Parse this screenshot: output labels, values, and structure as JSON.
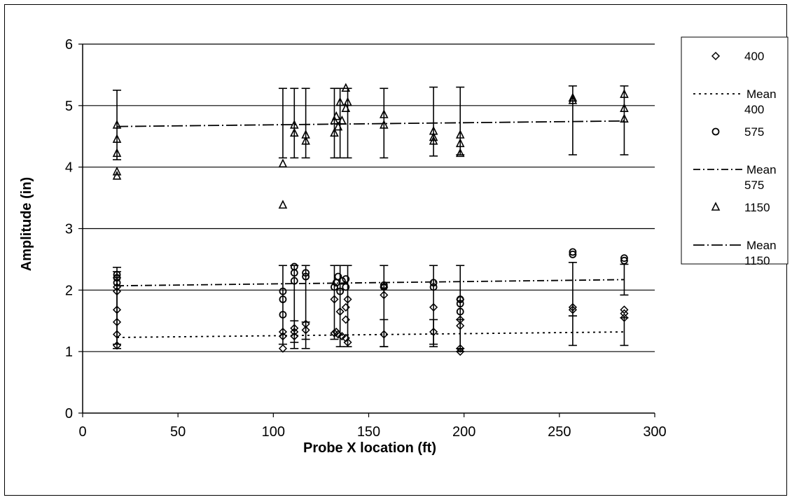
{
  "chart_data": {
    "type": "scatter",
    "title": "",
    "xlabel": "Probe X location (ft)",
    "ylabel": "Amplitude (in)",
    "xlim": [
      0,
      300
    ],
    "ylim": [
      0,
      6
    ],
    "xticks": [
      0,
      50,
      100,
      150,
      200,
      250,
      300
    ],
    "yticks": [
      0,
      1,
      2,
      3,
      4,
      5,
      6
    ],
    "grid": "horizontal",
    "legend_position": "right",
    "legend": [
      {
        "label": "400",
        "marker": "diamond",
        "style": "marker"
      },
      {
        "label": "Mean 400",
        "style": "dotted"
      },
      {
        "label": "575",
        "marker": "circle",
        "style": "marker"
      },
      {
        "label": "Mean 575",
        "style": "dash-dot"
      },
      {
        "label": "1150",
        "marker": "triangle",
        "style": "marker"
      },
      {
        "label": "Mean 1150",
        "style": "long-dash-dot"
      }
    ],
    "series": [
      {
        "name": "400",
        "marker": "diamond",
        "x": [
          18,
          18,
          18,
          18,
          18,
          18,
          18,
          105,
          105,
          105,
          111,
          111,
          111,
          117,
          117,
          132,
          132,
          133,
          134,
          135,
          136,
          138,
          138,
          138,
          139,
          139,
          158,
          158,
          158,
          184,
          184,
          198,
          198,
          198,
          198,
          198,
          257,
          257,
          284,
          284,
          284
        ],
        "y": [
          1.1,
          1.28,
          1.48,
          1.68,
          1.98,
          2.05,
          2.2,
          1.05,
          1.25,
          1.32,
          1.25,
          1.32,
          1.38,
          1.35,
          1.45,
          1.3,
          1.85,
          1.32,
          1.28,
          1.65,
          1.25,
          1.22,
          1.52,
          1.72,
          1.15,
          1.85,
          1.28,
          1.92,
          2.05,
          1.32,
          1.72,
          1.0,
          1.05,
          1.42,
          1.52,
          1.85,
          1.68,
          1.72,
          1.55,
          1.62,
          1.68
        ]
      },
      {
        "name": "Mean 400",
        "type": "line",
        "x": [
          18,
          284
        ],
        "y": [
          1.23,
          1.32
        ]
      },
      {
        "name": "575",
        "marker": "circle",
        "x": [
          18,
          18,
          18,
          105,
          105,
          105,
          111,
          111,
          111,
          117,
          117,
          132,
          133,
          134,
          135,
          136,
          138,
          138,
          158,
          158,
          184,
          184,
          198,
          198,
          198,
          257,
          257,
          284,
          284
        ],
        "y": [
          2.12,
          2.2,
          2.25,
          1.6,
          1.85,
          1.98,
          2.15,
          2.28,
          2.38,
          2.22,
          2.28,
          2.05,
          2.12,
          2.22,
          1.98,
          2.15,
          2.05,
          2.18,
          2.05,
          2.08,
          2.05,
          2.12,
          1.65,
          1.78,
          1.85,
          2.58,
          2.62,
          2.48,
          2.52
        ]
      },
      {
        "name": "Mean 575",
        "type": "line",
        "x": [
          18,
          284
        ],
        "y": [
          2.07,
          2.17
        ]
      },
      {
        "name": "1150",
        "marker": "triangle",
        "x": [
          18,
          18,
          18,
          18,
          18,
          105,
          105,
          111,
          111,
          117,
          117,
          132,
          132,
          133,
          134,
          135,
          136,
          138,
          138,
          139,
          158,
          158,
          184,
          184,
          184,
          198,
          198,
          198,
          257,
          257,
          284,
          284,
          284
        ],
        "y": [
          3.85,
          3.92,
          4.22,
          4.45,
          4.68,
          3.38,
          4.05,
          4.55,
          4.68,
          4.42,
          4.52,
          4.55,
          4.75,
          4.82,
          4.65,
          5.05,
          4.75,
          4.95,
          5.28,
          5.05,
          4.68,
          4.85,
          4.42,
          4.48,
          4.58,
          4.22,
          4.38,
          4.52,
          5.08,
          5.12,
          4.78,
          4.95,
          5.18
        ]
      },
      {
        "name": "Mean 1150",
        "type": "line",
        "x": [
          18,
          284
        ],
        "y": [
          4.66,
          4.75
        ]
      }
    ],
    "error_bars": [
      {
        "x": 18,
        "low": 1.05,
        "high": 2.37
      },
      {
        "x": 18,
        "low": 1.12,
        "high": 2.3
      },
      {
        "x": 18,
        "low": 4.12,
        "high": 5.25
      },
      {
        "x": 105,
        "low": 1.12,
        "high": 2.4
      },
      {
        "x": 105,
        "low": 4.15,
        "high": 5.28
      },
      {
        "x": 111,
        "low": 1.15,
        "high": 2.4
      },
      {
        "x": 111,
        "low": 1.05,
        "high": 1.5
      },
      {
        "x": 111,
        "low": 4.15,
        "high": 5.28
      },
      {
        "x": 117,
        "low": 1.2,
        "high": 2.4
      },
      {
        "x": 117,
        "low": 1.05,
        "high": 1.48
      },
      {
        "x": 117,
        "low": 4.15,
        "high": 5.28
      },
      {
        "x": 132,
        "low": 1.2,
        "high": 2.4
      },
      {
        "x": 132,
        "low": 4.15,
        "high": 5.28
      },
      {
        "x": 135,
        "low": 1.08,
        "high": 2.4
      },
      {
        "x": 135,
        "low": 4.15,
        "high": 5.28
      },
      {
        "x": 139,
        "low": 1.08,
        "high": 2.4
      },
      {
        "x": 139,
        "low": 4.15,
        "high": 5.28
      },
      {
        "x": 158,
        "low": 1.08,
        "high": 2.4
      },
      {
        "x": 158,
        "low": 1.08,
        "high": 1.52
      },
      {
        "x": 158,
        "low": 4.15,
        "high": 5.28
      },
      {
        "x": 184,
        "low": 1.08,
        "high": 2.4
      },
      {
        "x": 184,
        "low": 1.12,
        "high": 1.52
      },
      {
        "x": 184,
        "low": 4.18,
        "high": 5.3
      },
      {
        "x": 198,
        "low": 1.0,
        "high": 2.4
      },
      {
        "x": 198,
        "low": 1.05,
        "high": 1.52
      },
      {
        "x": 198,
        "low": 4.2,
        "high": 5.3
      },
      {
        "x": 257,
        "low": 1.58,
        "high": 2.45
      },
      {
        "x": 257,
        "low": 1.1,
        "high": 1.58
      },
      {
        "x": 257,
        "low": 4.2,
        "high": 5.32
      },
      {
        "x": 284,
        "low": 1.92,
        "high": 2.42
      },
      {
        "x": 284,
        "low": 1.1,
        "high": 1.55
      },
      {
        "x": 284,
        "low": 4.2,
        "high": 5.32
      }
    ]
  }
}
